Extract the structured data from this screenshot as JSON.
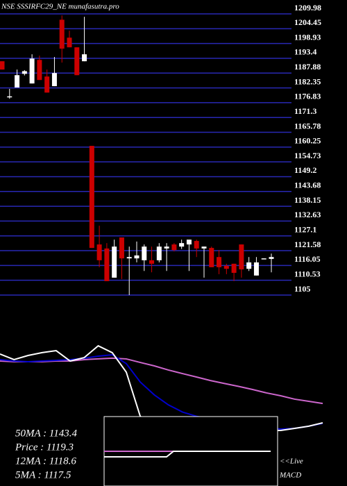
{
  "chart_data": [
    {
      "type": "candlestick",
      "title": "NSE SSSIRFC29_NE munafasutra.pro",
      "ylim": [
        1105,
        1209.98
      ],
      "yticks": [
        1105,
        1110.53,
        1116.05,
        1121.58,
        1127.1,
        1132.63,
        1138.15,
        1143.68,
        1149.2,
        1154.73,
        1160.25,
        1165.78,
        1171.3,
        1176.83,
        1182.35,
        1187.88,
        1193.4,
        1198.93,
        1204.45,
        1209.98
      ],
      "grid": true,
      "up_color": "#ffffff",
      "down_color": "#cc0000",
      "open": [
        1192.3,
        1178.9,
        1182.5,
        1187.6,
        1184,
        1192.8,
        1186.6,
        1183,
        1207.8,
        1201.1,
        1197.5,
        1192.3,
        1160.7,
        1123.9,
        1122.4,
        1111.5,
        1126.5,
        1118.7,
        1118.7,
        1118,
        1118,
        1118,
        1122.4,
        1123.9,
        1123.1,
        1123.9,
        1125.2,
        1122.4,
        1122.6,
        1119.2,
        1115.9,
        1116.7,
        1123.9,
        1114.8,
        1112.3,
        1118.5,
        1118.5
      ],
      "high": [
        1192.3,
        1182,
        1189.2,
        1189,
        1194.9,
        1194.4,
        1189.2,
        1193.9,
        1209.4,
        1203.7,
        1197.5,
        1208.9,
        1160.7,
        1130.9,
        1124.4,
        1125.7,
        1126.5,
        1123.1,
        1125,
        1123.9,
        1123.1,
        1124.4,
        1124.4,
        1124.4,
        1125.7,
        1125.7,
        1125.7,
        1123.1,
        1123.1,
        1121.8,
        1116.7,
        1116.7,
        1123.9,
        1119.2,
        1119.2,
        1118.7,
        1120.5
      ],
      "low": [
        1189.2,
        1178.3,
        1182.5,
        1187,
        1184,
        1185.3,
        1180.6,
        1183,
        1191.8,
        1197.5,
        1187.1,
        1192.3,
        1122.6,
        1115.4,
        1110.2,
        1111.5,
        1111,
        1105,
        1117.2,
        1114,
        1113.5,
        1117.2,
        1114,
        1121.3,
        1122.2,
        1114,
        1119.2,
        1111.5,
        1115.4,
        1112.8,
        1112.8,
        1110.2,
        1111.5,
        1114,
        1112.3,
        1118.5,
        1113.5
      ],
      "close": [
        1189.2,
        1179.2,
        1187.1,
        1188.6,
        1193.3,
        1185.3,
        1180.6,
        1187.9,
        1197,
        1197.5,
        1187.1,
        1194.9,
        1122.6,
        1118,
        1110.2,
        1123.1,
        1118.7,
        1119.2,
        1119.8,
        1123.1,
        1116.7,
        1123.1,
        1123.1,
        1121.8,
        1124.4,
        1125.7,
        1122.4,
        1123.1,
        1115.4,
        1115.4,
        1114.8,
        1113.3,
        1114.6,
        1117.2,
        1117.2,
        1118.7,
        1119.2
      ]
    },
    {
      "type": "line",
      "ylim": [
        0,
        100
      ],
      "annotations": [
        "50MA : 1143.4",
        "Price  : 1119.3",
        "12MA : 1118.6",
        "5MA : 1117.5"
      ],
      "series": [
        {
          "color": "#cc66cc",
          "values": [
            87.8,
            87.3,
            87.3,
            87.3,
            87.8,
            87.8,
            88.8,
            89.3,
            89.8,
            89.3,
            86.8,
            84.4,
            81.5,
            79,
            76.6,
            74.1,
            72,
            70,
            67.8,
            65.4,
            63.4,
            61,
            59.5,
            58
          ]
        },
        {
          "color": "#0000cc",
          "values": [
            88.8,
            87.8,
            87.3,
            87.8,
            88.3,
            88.8,
            89.8,
            91.2,
            92.2,
            86,
            73,
            64,
            57,
            52,
            49,
            47,
            45,
            43.5,
            42,
            41,
            40,
            40.5,
            42,
            44
          ]
        },
        {
          "color": "#ffffff",
          "values": [
            92.7,
            88.8,
            91.7,
            93.7,
            95.1,
            87.8,
            90.2,
            98.5,
            93.7,
            80,
            48.8,
            46.3,
            45,
            43.9,
            42.7,
            41.5,
            40.7,
            40,
            39.5,
            39,
            39,
            40.5,
            42,
            44.4
          ]
        }
      ]
    },
    {
      "type": "line",
      "ylim": [
        0,
        100
      ],
      "annotations": [
        "<<Live",
        "MACD"
      ],
      "series": [
        {
          "color": "#cc66cc",
          "values": [
            50,
            50,
            50,
            50,
            50,
            50,
            50,
            50,
            50,
            50,
            50,
            50,
            50,
            50,
            50,
            50,
            50,
            50,
            50,
            50,
            50,
            50,
            50,
            50,
            50
          ]
        },
        {
          "color": "#ffffff",
          "values": [
            42,
            42,
            42,
            42,
            42,
            42,
            42,
            42,
            42,
            42,
            50,
            50,
            50,
            50,
            50,
            50,
            50,
            50,
            50,
            50,
            50,
            50,
            50,
            50,
            50
          ]
        }
      ]
    }
  ]
}
